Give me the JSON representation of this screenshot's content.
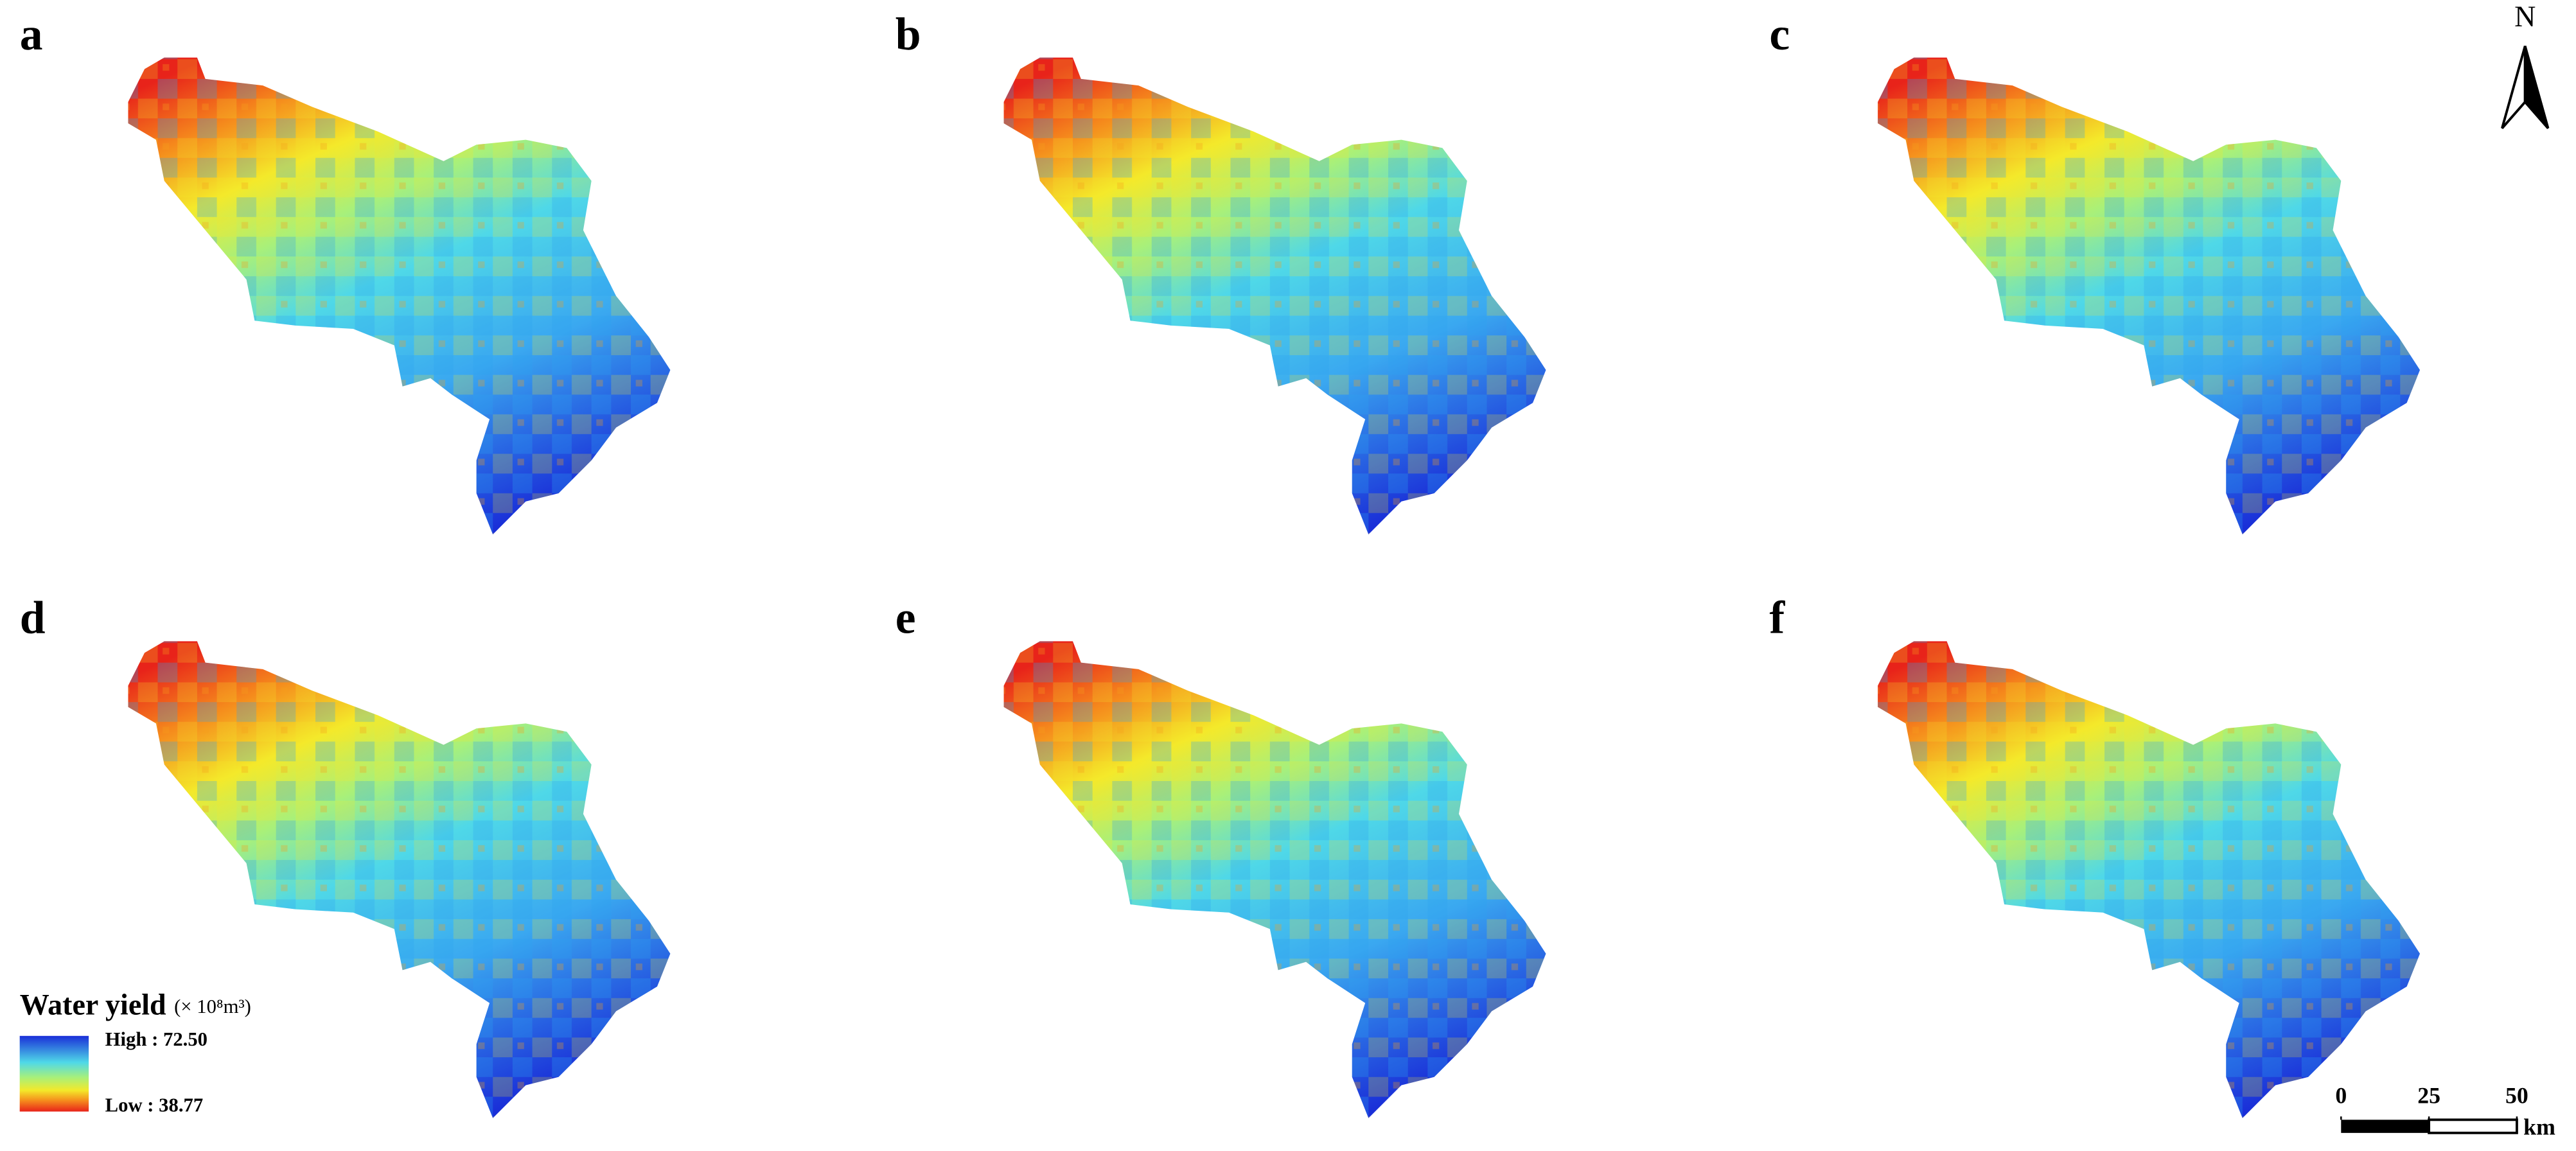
{
  "panels": [
    {
      "label": "a"
    },
    {
      "label": "b"
    },
    {
      "label": "c"
    },
    {
      "label": "d"
    },
    {
      "label": "e"
    },
    {
      "label": "f"
    }
  ],
  "north_arrow": {
    "label": "N"
  },
  "legend": {
    "title": "Water yield",
    "unit": "(× 10⁸m³)",
    "high": "High : 72.50",
    "low": "Low : 38.77"
  },
  "scale_bar": {
    "ticks": [
      0,
      25,
      50
    ],
    "unit": "km"
  }
}
